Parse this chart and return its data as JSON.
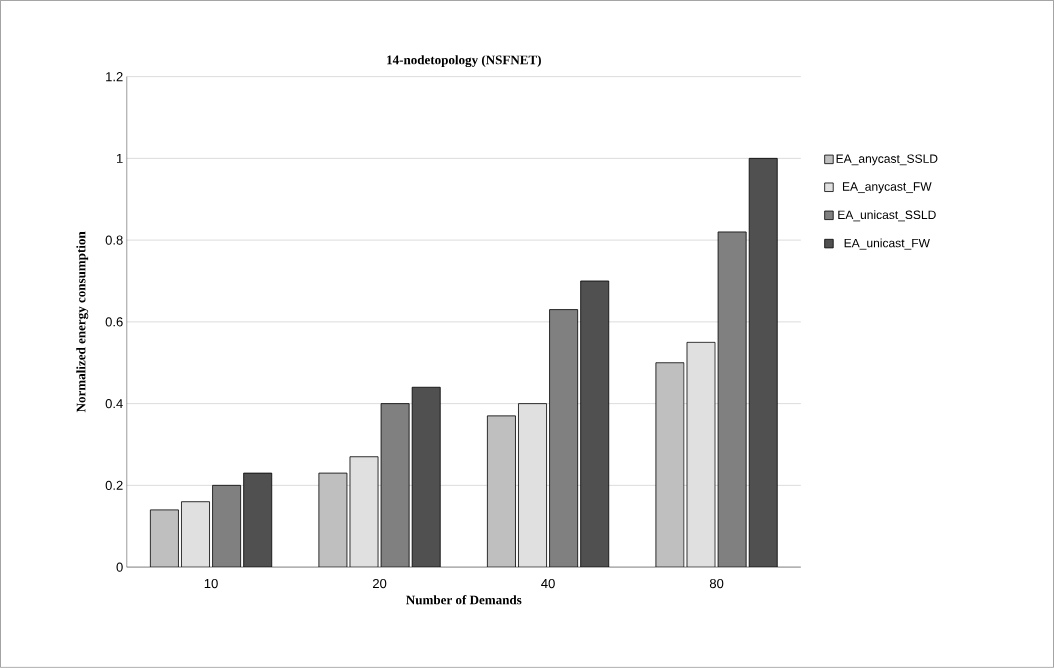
{
  "chart_data": {
    "type": "bar",
    "title": "14-nodetopology (NSFNET)",
    "xlabel": "Number of Demands",
    "ylabel": "Normalized energy consumption",
    "categories": [
      "10",
      "20",
      "40",
      "80"
    ],
    "series": [
      {
        "name": "EA_anycast_SSLD",
        "color": "#bfbfbf",
        "values": [
          0.14,
          0.23,
          0.37,
          0.5
        ]
      },
      {
        "name": "EA_anycast_FW",
        "color": "#e0e0e0",
        "values": [
          0.16,
          0.27,
          0.4,
          0.55
        ]
      },
      {
        "name": "EA_unicast_SSLD",
        "color": "#808080",
        "values": [
          0.2,
          0.4,
          0.63,
          0.82
        ]
      },
      {
        "name": "EA_unicast_FW",
        "color": "#505050",
        "values": [
          0.23,
          0.44,
          0.7,
          1.0
        ]
      }
    ],
    "ylim": [
      0,
      1.2
    ],
    "yticks": [
      0,
      0.2,
      0.4,
      0.6,
      0.8,
      1,
      1.2
    ],
    "grid": "y",
    "legend": "right"
  }
}
